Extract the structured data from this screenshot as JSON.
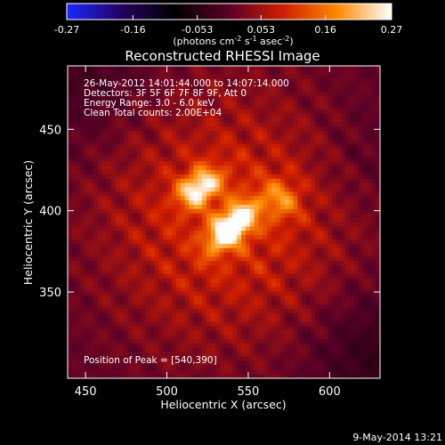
{
  "chart_data": {
    "type": "heatmap",
    "title": "Reconstructed RHESSI Image",
    "xlabel": "Heliocentric X (arcsec)",
    "ylabel": "Heliocentric Y (arcsec)",
    "xlim": [
      439,
      631
    ],
    "ylim": [
      297,
      489
    ],
    "x_ticks": [
      450,
      500,
      550,
      600
    ],
    "x_tick_labels": [
      "450",
      "500",
      "550",
      "600"
    ],
    "y_ticks": [
      350,
      400,
      450
    ],
    "y_tick_labels": [
      "350",
      "400",
      "450"
    ],
    "colorbar": {
      "min": -0.27,
      "max": 0.27,
      "ticks": [
        -0.27,
        -0.16,
        -0.053,
        0.053,
        0.16,
        0.27
      ],
      "tick_labels": [
        "-0.27",
        "-0.16",
        "-0.053",
        "0.053",
        "0.16",
        "0.27"
      ],
      "units_label_parts": [
        "(photons cm",
        "-2",
        " s",
        "-1",
        " asec",
        "-2",
        ")"
      ],
      "colormap": [
        "#1a28ff",
        "#240060",
        "#000000",
        "#5a0028",
        "#d01e00",
        "#ff8a00",
        "#ffffff"
      ]
    },
    "annotations": {
      "time": "26-May-2012 14:01:44.000 to 14:07:14.000",
      "detectors": "Detectors: 3F 5F 6F 7F 8F 9F, Att 0",
      "energy": "Energy Range: 3.0 - 6.0 keV",
      "clean": "Clean     Total counts: 2.00E+04",
      "peak": "Position of Peak = [540,390]"
    },
    "sources": [
      {
        "x": 540,
        "y": 390,
        "peak": 0.27
      },
      {
        "x": 520,
        "y": 414,
        "peak": 0.2
      },
      {
        "x": 570,
        "y": 407,
        "peak": 0.1
      }
    ],
    "peak_position": [
      540,
      390
    ]
  },
  "footer": {
    "date": "9-May-2014 13:21"
  }
}
